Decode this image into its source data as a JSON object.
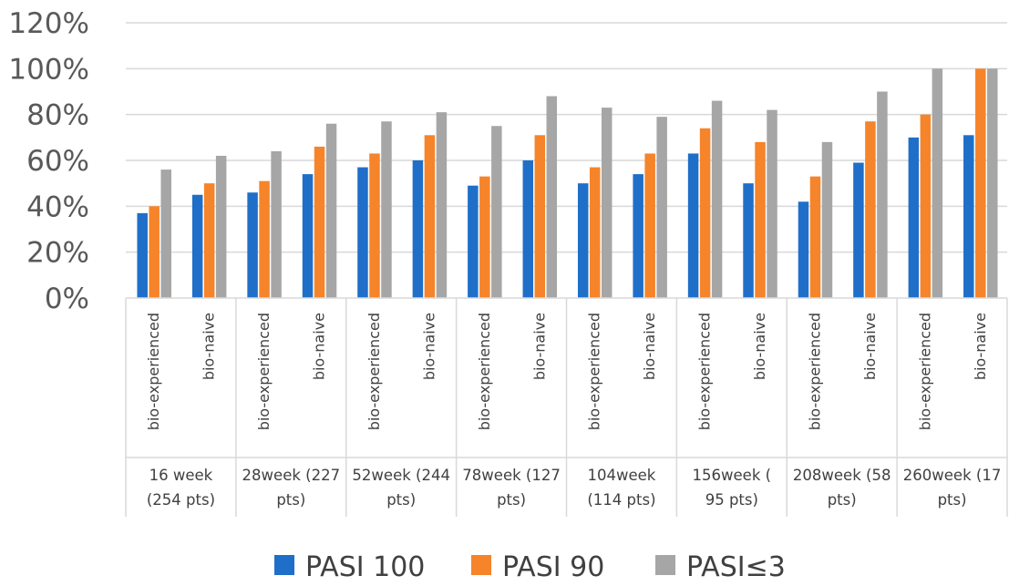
{
  "chart_data": {
    "type": "bar",
    "groups": [
      {
        "label_lines": [
          "16 week",
          "(254 pts)"
        ]
      },
      {
        "label_lines": [
          "28week (227",
          "pts)"
        ]
      },
      {
        "label_lines": [
          "52week (244",
          "pts)"
        ]
      },
      {
        "label_lines": [
          "78week (127",
          "pts)"
        ]
      },
      {
        "label_lines": [
          "104week",
          "(114 pts)"
        ]
      },
      {
        "label_lines": [
          "156week (",
          "95 pts)"
        ]
      },
      {
        "label_lines": [
          "208week (58",
          "pts)"
        ]
      },
      {
        "label_lines": [
          "260week (17",
          "pts)"
        ]
      }
    ],
    "subcategories": [
      "bio-experienced",
      "bio-naive"
    ],
    "series": [
      {
        "name": "PASI 100",
        "color": "#1f6fc9",
        "values": [
          37,
          45,
          46,
          54,
          57,
          60,
          49,
          60,
          50,
          54,
          63,
          50,
          42,
          59,
          70,
          71
        ]
      },
      {
        "name": "PASI 90",
        "color": "#f5842a",
        "values": [
          40,
          50,
          51,
          66,
          63,
          71,
          53,
          71,
          57,
          63,
          74,
          68,
          53,
          77,
          80,
          100
        ]
      },
      {
        "name": "PASI≤3",
        "color": "#a6a6a6",
        "values": [
          56,
          62,
          64,
          76,
          77,
          81,
          75,
          88,
          83,
          79,
          86,
          82,
          68,
          90,
          100,
          100
        ]
      }
    ],
    "yticks": [
      "0%",
      "20%",
      "40%",
      "60%",
      "80%",
      "100%",
      "120%"
    ],
    "ylim": [
      0,
      120
    ],
    "grid": true,
    "legend_position": "bottom"
  }
}
